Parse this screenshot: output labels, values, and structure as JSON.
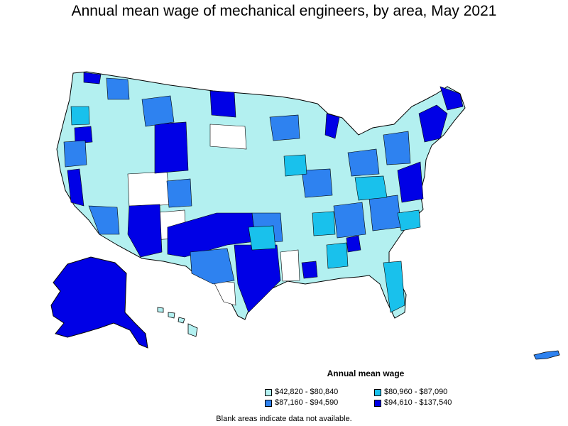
{
  "title": "Annual mean wage of mechanical engineers, by area, May 2021",
  "legend": {
    "title": "Annual mean wage",
    "items": [
      {
        "label": "$42,820 - $80,840",
        "color": "#b3f0f0"
      },
      {
        "label": "$80,960 - $87,090",
        "color": "#19c1ec"
      },
      {
        "label": "$87,160 - $94,590",
        "color": "#2e82f0"
      },
      {
        "label": "$94,610 - $137,540",
        "color": "#0000e6"
      }
    ]
  },
  "note": "Blank areas indicate data not available."
}
